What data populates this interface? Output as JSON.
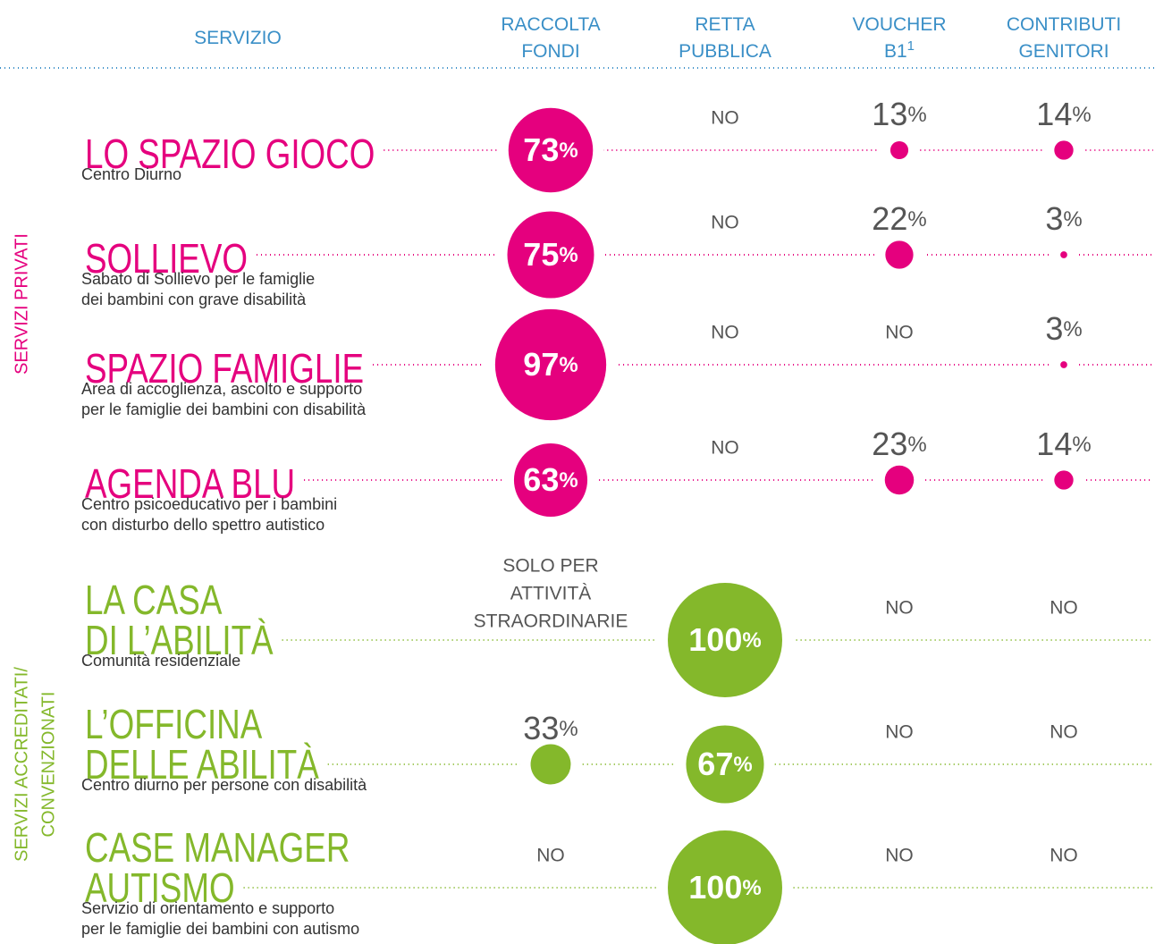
{
  "header": {
    "columns": [
      {
        "lines": [
          "SERVIZIO"
        ]
      },
      {
        "lines": [
          "RACCOLTA",
          "FONDI"
        ]
      },
      {
        "lines": [
          "RETTA",
          "PUBBLICA"
        ]
      },
      {
        "lines": [
          "VOUCHER",
          "B1"
        ],
        "sup": "1"
      },
      {
        "lines": [
          "CONTRIBUTI",
          "GENITORI"
        ]
      }
    ]
  },
  "groups": [
    {
      "label": [
        "SERVIZI PRIVATI"
      ],
      "color": "#e5007e",
      "rows": [
        {
          "name": [
            "LO SPAZIO GIOCO"
          ],
          "description": [
            "Centro Diurno"
          ],
          "cells": [
            {
              "value": 73,
              "unit": "%"
            },
            {
              "text": [
                "NO"
              ]
            },
            {
              "value": 13,
              "unit": "%"
            },
            {
              "value": 14,
              "unit": "%"
            }
          ]
        },
        {
          "name": [
            "SOLLIEVO"
          ],
          "description": [
            "Sabato di Sollievo per le famiglie",
            "dei bambini con grave disabilità"
          ],
          "cells": [
            {
              "value": 75,
              "unit": "%"
            },
            {
              "text": [
                "NO"
              ]
            },
            {
              "value": 22,
              "unit": "%"
            },
            {
              "value": 3,
              "unit": "%"
            }
          ]
        },
        {
          "name": [
            "SPAZIO FAMIGLIE"
          ],
          "description": [
            "Area di accoglienza, ascolto e supporto",
            "per le famiglie dei bambini con disabilità"
          ],
          "cells": [
            {
              "value": 97,
              "unit": "%"
            },
            {
              "text": [
                "NO"
              ]
            },
            {
              "text": [
                "NO"
              ]
            },
            {
              "value": 3,
              "unit": "%"
            }
          ]
        },
        {
          "name": [
            "AGENDA BLU"
          ],
          "description": [
            "Centro psicoeducativo per i bambini",
            "con disturbo dello spettro autistico"
          ],
          "cells": [
            {
              "value": 63,
              "unit": "%"
            },
            {
              "text": [
                "NO"
              ]
            },
            {
              "value": 23,
              "unit": "%"
            },
            {
              "value": 14,
              "unit": "%"
            }
          ]
        }
      ]
    },
    {
      "label": [
        "SERVIZI ACCREDITATI/",
        "CONVENZIONATI"
      ],
      "color": "#84b82b",
      "rows": [
        {
          "name": [
            "LA CASA",
            "DI L’ABILITÀ"
          ],
          "description": [
            "Comunità residenziale"
          ],
          "cells": [
            {
              "text": [
                "SOLO PER",
                "ATTIVITÀ",
                "STRAORDINARIE"
              ]
            },
            {
              "value": 100,
              "unit": "%"
            },
            {
              "text": [
                "NO"
              ]
            },
            {
              "text": [
                "NO"
              ]
            }
          ]
        },
        {
          "name": [
            "L’OFFICINA",
            "DELLE ABILITÀ"
          ],
          "description": [
            "Centro diurno per persone con disabilità"
          ],
          "cells": [
            {
              "value": 33,
              "unit": "%"
            },
            {
              "value": 67,
              "unit": "%"
            },
            {
              "text": [
                "NO"
              ]
            },
            {
              "text": [
                "NO"
              ]
            }
          ]
        },
        {
          "name": [
            "CASE MANAGER",
            "AUTISMO"
          ],
          "description": [
            "Servizio di orientamento e supporto",
            "per le famiglie dei bambini con autismo"
          ],
          "cells": [
            {
              "text": [
                "NO"
              ]
            },
            {
              "value": 100,
              "unit": "%"
            },
            {
              "text": [
                "NO"
              ]
            },
            {
              "text": [
                "NO"
              ]
            }
          ]
        }
      ]
    }
  ]
}
